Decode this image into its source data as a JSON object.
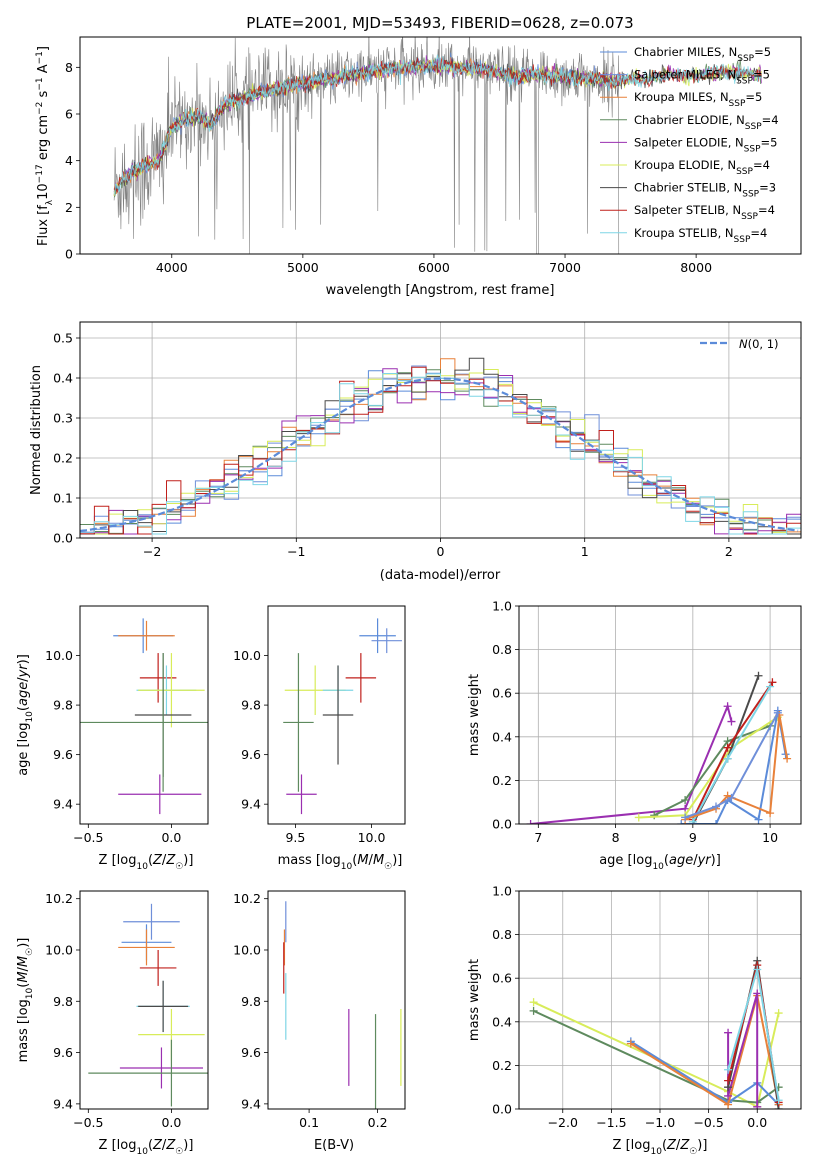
{
  "figure_title": "PLATE=2001, MJD=53493, FIBERID=0628, z=0.073",
  "colors": {
    "Chabrier MILES": "#5b8bd9",
    "Salpeter MILES": "#6f8fd9",
    "Kroupa MILES": "#e8813a",
    "Chabrier ELODIE": "#5e8a5e",
    "Salpeter ELODIE": "#9a2fb0",
    "Kroupa ELODIE": "#d8ec5a",
    "Chabrier STELIB": "#4a4a4a",
    "Salpeter STELIB": "#c0201c",
    "Kroupa STELIB": "#7fd6e6",
    "data": "#7f7f7f",
    "gauss": "#5b8bd9"
  },
  "chart_data": [
    {
      "id": "spectrum",
      "type": "line",
      "title": "PLATE=2001, MJD=53493, FIBERID=0628, z=0.073",
      "xlabel": "wavelength [Angstrom, rest frame]",
      "ylabel": "Flux [f_λ 10^-17 erg cm^-2 s^-1 A^-1]",
      "xlim": [
        3300,
        8800
      ],
      "ylim": [
        0,
        9.3
      ],
      "xticks": [
        4000,
        5000,
        6000,
        7000,
        8000
      ],
      "yticks": [
        0,
        2,
        4,
        6,
        8
      ],
      "legend": [
        "Chabrier MILES, N_SSP=5",
        "Salpeter MILES, N_SSP=5",
        "Kroupa MILES, N_SSP=5",
        "Chabrier ELODIE, N_SSP=4",
        "Salpeter ELODIE, N_SSP=5",
        "Kroupa ELODIE, N_SSP=4",
        "Chabrier STELIB, N_SSP=3",
        "Salpeter STELIB, N_SSP=4",
        "Kroupa STELIB, N_SSP=4"
      ],
      "legend_position": "right",
      "model_continuum": {
        "x": [
          3560,
          3620,
          3700,
          3800,
          3900,
          3950,
          4000,
          4100,
          4200,
          4300,
          4400,
          4600,
          4800,
          5000,
          5200,
          5400,
          5600,
          5800,
          6000,
          6200,
          6400,
          6600,
          6800,
          7000,
          7200,
          7400,
          7600,
          7800,
          8000,
          8200,
          8500
        ],
        "y": [
          2.7,
          3.2,
          3.5,
          3.8,
          4.0,
          4.6,
          5.4,
          5.8,
          5.9,
          5.6,
          6.4,
          6.8,
          7.1,
          7.3,
          7.5,
          7.7,
          7.9,
          8.0,
          8.1,
          8.0,
          7.9,
          7.6,
          7.7,
          7.6,
          7.5,
          7.4,
          7.5,
          7.7,
          7.6,
          7.8,
          7.7
        ]
      },
      "data_end": 7410
    },
    {
      "id": "residuals",
      "type": "histogram",
      "xlabel": "(data-model)/error",
      "ylabel": "Normed distribution",
      "xlim": [
        -2.5,
        2.5
      ],
      "ylim": [
        0,
        0.54
      ],
      "xticks": [
        -2,
        -1,
        0,
        1,
        2
      ],
      "yticks": [
        0.0,
        0.1,
        0.2,
        0.3,
        0.4,
        0.5
      ],
      "grid": true,
      "legend": "N(0,1)",
      "legend_position": "top-right",
      "bin_width": 0.1
    },
    {
      "id": "age_vs_Z",
      "type": "errorbar",
      "xlabel": "Z [log10(Z/Z☉)]",
      "ylabel": "age  [log10(age/yr)]",
      "xlim": [
        -0.55,
        0.22
      ],
      "ylim": [
        9.32,
        10.2
      ],
      "xticks": [
        -0.5,
        0.0
      ],
      "yticks": [
        9.4,
        9.6,
        9.8,
        10.0
      ],
      "points": [
        {
          "model": "Chabrier MILES",
          "x": -0.17,
          "y": 10.08,
          "xerr": 0.18,
          "yerr": 0.07
        },
        {
          "model": "Kroupa MILES",
          "x": -0.15,
          "y": 10.08,
          "xerr": 0.17,
          "yerr": 0.06
        },
        {
          "model": "Salpeter STELIB",
          "x": -0.08,
          "y": 9.91,
          "xerr": 0.11,
          "yerr": 0.1
        },
        {
          "model": "Kroupa STELIB",
          "x": -0.03,
          "y": 9.86,
          "xerr": 0.18,
          "yerr": 0.1
        },
        {
          "model": "Kroupa ELODIE",
          "x": 0.0,
          "y": 9.86,
          "xerr": 0.2,
          "yerr": 0.15
        },
        {
          "model": "Chabrier STELIB",
          "x": -0.05,
          "y": 9.76,
          "xerr": 0.17,
          "yerr": 0.25
        },
        {
          "model": "Chabrier ELODIE",
          "x": -0.05,
          "y": 9.73,
          "xerr": 0.5,
          "yerr": 0.28
        },
        {
          "model": "Salpeter ELODIE",
          "x": -0.07,
          "y": 9.44,
          "xerr": 0.25,
          "yerr": 0.08
        }
      ]
    },
    {
      "id": "age_vs_mass",
      "type": "errorbar",
      "xlabel": "mass [log10(M/M☉)]",
      "ylabel": "",
      "xlim": [
        9.32,
        10.22
      ],
      "ylim": [
        9.32,
        10.2
      ],
      "xticks": [
        9.5,
        10.0
      ],
      "yticks": [
        9.4,
        9.6,
        9.8,
        10.0
      ],
      "points": [
        {
          "model": "Chabrier MILES",
          "x": 10.04,
          "y": 10.08,
          "xerr": 0.12,
          "yerr": 0.07
        },
        {
          "model": "Salpeter MILES",
          "x": 10.1,
          "y": 10.06,
          "xerr": 0.1,
          "yerr": 0.05
        },
        {
          "model": "Salpeter STELIB",
          "x": 9.93,
          "y": 9.91,
          "xerr": 0.1,
          "yerr": 0.1
        },
        {
          "model": "Kroupa ELODIE",
          "x": 9.63,
          "y": 9.86,
          "xerr": 0.2,
          "yerr": 0.1
        },
        {
          "model": "Kroupa STELIB",
          "x": 9.78,
          "y": 9.86,
          "xerr": 0.1,
          "yerr": 0.1
        },
        {
          "model": "Chabrier STELIB",
          "x": 9.78,
          "y": 9.76,
          "xerr": 0.1,
          "yerr": 0.2
        },
        {
          "model": "Chabrier ELODIE",
          "x": 9.52,
          "y": 9.73,
          "xerr": 0.1,
          "yerr": 0.28
        },
        {
          "model": "Salpeter ELODIE",
          "x": 9.54,
          "y": 9.44,
          "xerr": 0.1,
          "yerr": 0.08
        }
      ]
    },
    {
      "id": "weight_vs_age",
      "type": "line",
      "xlabel": "age  [log10(age/yr)]",
      "ylabel": "mass weight",
      "xlim": [
        6.75,
        10.4
      ],
      "ylim": [
        0,
        1.0
      ],
      "xticks": [
        7,
        8,
        9,
        10
      ],
      "yticks": [
        0.0,
        0.2,
        0.4,
        0.6,
        0.8,
        1.0
      ],
      "grid": true,
      "series": [
        {
          "model": "Salpeter ELODIE",
          "x": [
            6.9,
            8.9,
            9.45,
            9.5
          ],
          "y": [
            0.0,
            0.07,
            0.54,
            0.47
          ]
        },
        {
          "model": "Chabrier ELODIE",
          "x": [
            8.5,
            8.9,
            9.45,
            10.0
          ],
          "y": [
            0.04,
            0.11,
            0.38,
            0.45
          ]
        },
        {
          "model": "Kroupa ELODIE",
          "x": [
            8.3,
            8.9,
            9.5,
            10.1
          ],
          "y": [
            0.03,
            0.04,
            0.35,
            0.49
          ]
        },
        {
          "model": "Chabrier STELIB",
          "x": [
            9.0,
            9.45,
            9.85
          ],
          "y": [
            0.0,
            0.3,
            0.68
          ]
        },
        {
          "model": "Salpeter STELIB",
          "x": [
            9.0,
            9.45,
            10.03
          ],
          "y": [
            0.02,
            0.35,
            0.65
          ]
        },
        {
          "model": "Kroupa STELIB",
          "x": [
            9.0,
            9.45,
            10.0
          ],
          "y": [
            0.01,
            0.3,
            0.63
          ]
        },
        {
          "model": "Chabrier MILES",
          "x": [
            8.85,
            9.3,
            9.45,
            9.85,
            10.1,
            10.2
          ],
          "y": [
            0.0,
            0.0,
            0.11,
            0.02,
            0.52,
            0.32
          ]
        },
        {
          "model": "Kroupa MILES",
          "x": [
            8.9,
            9.3,
            9.45,
            10.0,
            10.12,
            10.22
          ],
          "y": [
            0.02,
            0.07,
            0.13,
            0.05,
            0.5,
            0.3
          ]
        },
        {
          "model": "Salpeter MILES",
          "x": [
            8.9,
            9.3,
            9.5,
            10.1
          ],
          "y": [
            0.03,
            0.08,
            0.12,
            0.51
          ]
        }
      ]
    },
    {
      "id": "mass_vs_Z",
      "type": "errorbar",
      "xlabel": "Z [log10(Z/Z☉)]",
      "ylabel": "mass [log10(M/M☉)]",
      "xlim": [
        -0.55,
        0.22
      ],
      "ylim": [
        9.38,
        10.23
      ],
      "xticks": [
        -0.5,
        0.0
      ],
      "yticks": [
        9.4,
        9.6,
        9.8,
        10.0,
        10.2
      ],
      "points": [
        {
          "model": "Salpeter MILES",
          "x": -0.12,
          "y": 10.11,
          "xerr": 0.17,
          "yerr": 0.07
        },
        {
          "model": "Chabrier MILES",
          "x": -0.15,
          "y": 10.03,
          "xerr": 0.15,
          "yerr": 0.07
        },
        {
          "model": "Kroupa MILES",
          "x": -0.15,
          "y": 10.01,
          "xerr": 0.17,
          "yerr": 0.07
        },
        {
          "model": "Salpeter STELIB",
          "x": -0.08,
          "y": 9.93,
          "xerr": 0.11,
          "yerr": 0.07
        },
        {
          "model": "Kroupa STELIB",
          "x": -0.05,
          "y": 9.78,
          "xerr": 0.16,
          "yerr": 0.1
        },
        {
          "model": "Chabrier STELIB",
          "x": -0.05,
          "y": 9.78,
          "xerr": 0.15,
          "yerr": 0.1
        },
        {
          "model": "Kroupa ELODIE",
          "x": 0.0,
          "y": 9.67,
          "xerr": 0.2,
          "yerr": 0.1
        },
        {
          "model": "Salpeter ELODIE",
          "x": -0.06,
          "y": 9.54,
          "xerr": 0.25,
          "yerr": 0.08
        },
        {
          "model": "Chabrier ELODIE",
          "x": 0.0,
          "y": 9.52,
          "xerr": 0.5,
          "yerr": 0.13
        }
      ]
    },
    {
      "id": "mass_vs_ebv",
      "type": "errorbar",
      "xlabel": "E(B-V)",
      "ylabel": "",
      "xlim": [
        0.04,
        0.24
      ],
      "ylim": [
        9.38,
        10.23
      ],
      "xticks": [
        0.1,
        0.2
      ],
      "yticks": [
        9.4,
        9.6,
        9.8,
        10.0,
        10.2
      ],
      "points": [
        {
          "model": "Salpeter MILES",
          "x": 0.066,
          "y": 10.11,
          "xerr": 0,
          "yerr": 0.08
        },
        {
          "model": "Kroupa MILES",
          "x": 0.064,
          "y": 10.01,
          "xerr": 0,
          "yerr": 0.07
        },
        {
          "model": "Salpeter STELIB",
          "x": 0.063,
          "y": 9.93,
          "xerr": 0,
          "yerr": 0.1
        },
        {
          "model": "Kroupa STELIB",
          "x": 0.066,
          "y": 9.78,
          "xerr": 0,
          "yerr": 0.13
        },
        {
          "model": "Salpeter ELODIE",
          "x": 0.158,
          "y": 9.62,
          "xerr": 0,
          "yerr": 0.15
        },
        {
          "model": "Chabrier ELODIE",
          "x": 0.197,
          "y": 9.52,
          "xerr": 0,
          "yerr": 0.23
        },
        {
          "model": "Kroupa ELODIE",
          "x": 0.234,
          "y": 9.62,
          "xerr": 0,
          "yerr": 0.15
        }
      ]
    },
    {
      "id": "weight_vs_Z",
      "type": "line",
      "xlabel": "Z [log10(Z/Z☉)]",
      "ylabel": "mass weight",
      "xlim": [
        -2.45,
        0.45
      ],
      "ylim": [
        0,
        1.0
      ],
      "xticks": [
        -2.0,
        -1.5,
        -1.0,
        -0.5,
        0.0
      ],
      "yticks": [
        0.0,
        0.2,
        0.4,
        0.6,
        0.8,
        1.0
      ],
      "grid": true,
      "series": [
        {
          "model": "Kroupa ELODIE",
          "x": [
            -2.3,
            -0.3,
            0.0,
            0.22
          ],
          "y": [
            0.49,
            0.08,
            0.01,
            0.44
          ]
        },
        {
          "model": "Chabrier ELODIE",
          "x": [
            -2.3,
            -0.3,
            0.0,
            0.22
          ],
          "y": [
            0.45,
            0.04,
            0.03,
            0.1
          ]
        },
        {
          "model": "Chabrier MILES",
          "x": [
            -1.3,
            -0.3,
            0.0,
            0.22
          ],
          "y": [
            0.31,
            0.03,
            0.12,
            0.02
          ]
        },
        {
          "model": "Kroupa MILES",
          "x": [
            -1.3,
            -0.3,
            0.0,
            0.22
          ],
          "y": [
            0.3,
            0.02,
            0.52,
            0.02
          ]
        },
        {
          "model": "Salpeter ELODIE",
          "x": [
            -0.3,
            -0.3,
            0.0,
            0.0
          ],
          "y": [
            0.35,
            0.06,
            0.53,
            0.01
          ]
        },
        {
          "model": "Chabrier STELIB",
          "x": [
            -0.3,
            0.0,
            0.22
          ],
          "y": [
            0.1,
            0.68,
            0.0
          ]
        },
        {
          "model": "Salpeter STELIB",
          "x": [
            -0.3,
            0.0,
            0.22
          ],
          "y": [
            0.13,
            0.66,
            0.03
          ]
        },
        {
          "model": "Kroupa STELIB",
          "x": [
            -0.3,
            0.0,
            0.22
          ],
          "y": [
            0.18,
            0.64,
            0.04
          ]
        }
      ]
    }
  ]
}
